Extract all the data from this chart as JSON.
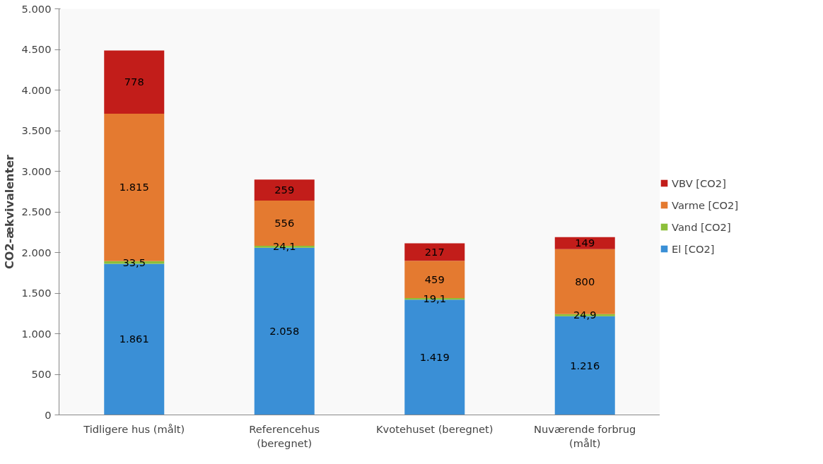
{
  "chart_data": {
    "type": "bar",
    "stacked": true,
    "ylabel": "CO2-ækvivalenter",
    "categories": [
      "Tidligere hus (målt)",
      "Referencehus (beregnet)",
      "Kvotehuset (beregnet)",
      "Nuværende forbrug (målt)"
    ],
    "series": [
      {
        "name": "El [CO2]",
        "color": "#3a8fd6",
        "values": [
          1861,
          2058,
          1419,
          1216
        ],
        "value_labels": [
          "1.861",
          "2.058",
          "1.419",
          "1.216"
        ]
      },
      {
        "name": "Vand [CO2]",
        "color": "#8cbf3a",
        "values": [
          33.5,
          24.1,
          19.1,
          24.9
        ],
        "value_labels": [
          "33,5",
          "24,1",
          "19,1",
          "24,9"
        ]
      },
      {
        "name": "Varme [CO2]",
        "color": "#e47a30",
        "values": [
          1815,
          556,
          459,
          800
        ],
        "value_labels": [
          "1.815",
          "556",
          "459",
          "800"
        ]
      },
      {
        "name": "VBV [CO2]",
        "color": "#c21d1a",
        "values": [
          778,
          259,
          217,
          149
        ],
        "value_labels": [
          "778",
          "259",
          "217",
          "149"
        ]
      }
    ],
    "ylim": [
      0,
      5000
    ],
    "yticks": [
      {
        "value": 0,
        "label": "0"
      },
      {
        "value": 500,
        "label": "500"
      },
      {
        "value": 1000,
        "label": "1.000"
      },
      {
        "value": 1500,
        "label": "1.500"
      },
      {
        "value": 2000,
        "label": "2.000"
      },
      {
        "value": 2500,
        "label": "2.500"
      },
      {
        "value": 3000,
        "label": "3.000"
      },
      {
        "value": 3500,
        "label": "3.500"
      },
      {
        "value": 4000,
        "label": "4.000"
      },
      {
        "value": 4500,
        "label": "4.500"
      },
      {
        "value": 5000,
        "label": "5.000"
      }
    ],
    "grid": false,
    "legend": "right"
  }
}
